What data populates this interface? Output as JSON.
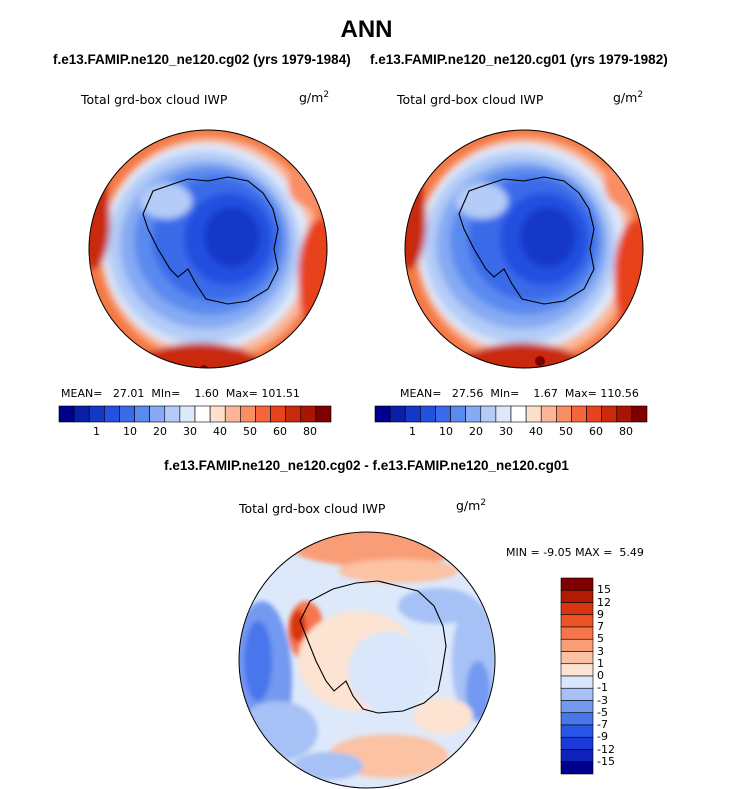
{
  "season": "ANN",
  "panels": [
    {
      "case_title": "f.e13.FAMIP.ne120_ne120.cg02 (yrs 1979-1984)",
      "variable": "Total grd-box cloud IWP",
      "units": "g/m",
      "units_exp": "2",
      "stats": {
        "mean_label": "MEAN=",
        "mean": "27.01",
        "min_label": "MIn=",
        "min": "1.60",
        "max_label": "Max=",
        "max": "101.51"
      }
    },
    {
      "case_title": "f.e13.FAMIP.ne120_ne120.cg01 (yrs 1979-1982)",
      "variable": "Total grd-box cloud IWP",
      "units": "g/m",
      "units_exp": "2",
      "stats": {
        "mean_label": "MEAN=",
        "mean": "27.56",
        "min_label": "MIn=",
        "min": "1.67",
        "max_label": "Max=",
        "max": "110.56"
      }
    }
  ],
  "colorbar_abs": {
    "colors": [
      "#00008c",
      "#0a1fa8",
      "#1537c7",
      "#2450e0",
      "#3a6ae9",
      "#5a8aef",
      "#86aaf3",
      "#b4ccf7",
      "#dde9fb",
      "#ffffff",
      "#fde0cc",
      "#fbb697",
      "#f98d64",
      "#f6663a",
      "#e8431d",
      "#c92a0c",
      "#a81504",
      "#7e0000"
    ],
    "ticks": [
      "1",
      "10",
      "20",
      "30",
      "40",
      "50",
      "60",
      "80"
    ]
  },
  "difference": {
    "title": "f.e13.FAMIP.ne120_ne120.cg02 - f.e13.FAMIP.ne120_ne120.cg01",
    "variable": "Total grd-box cloud IWP",
    "units": "g/m",
    "units_exp": "2",
    "stats": {
      "min_label": "MIN =",
      "min": "-9.05",
      "max_label": "MAX =",
      "max": "5.49"
    },
    "colorbar": {
      "colors": [
        "#00008c",
        "#0c22b8",
        "#1a3ad8",
        "#2a56e8",
        "#4a76ec",
        "#7399f1",
        "#a6c1f5",
        "#d9e6fb",
        "#fde3d2",
        "#fbc2a4",
        "#f99d76",
        "#f5764b",
        "#ee5328",
        "#d6350f",
        "#b21a03",
        "#7e0000"
      ],
      "ticks": [
        "15",
        "12",
        "9",
        "7",
        "5",
        "3",
        "1",
        "0",
        "-1",
        "-3",
        "-5",
        "-7",
        "-9",
        "-12",
        "-15"
      ]
    }
  }
}
